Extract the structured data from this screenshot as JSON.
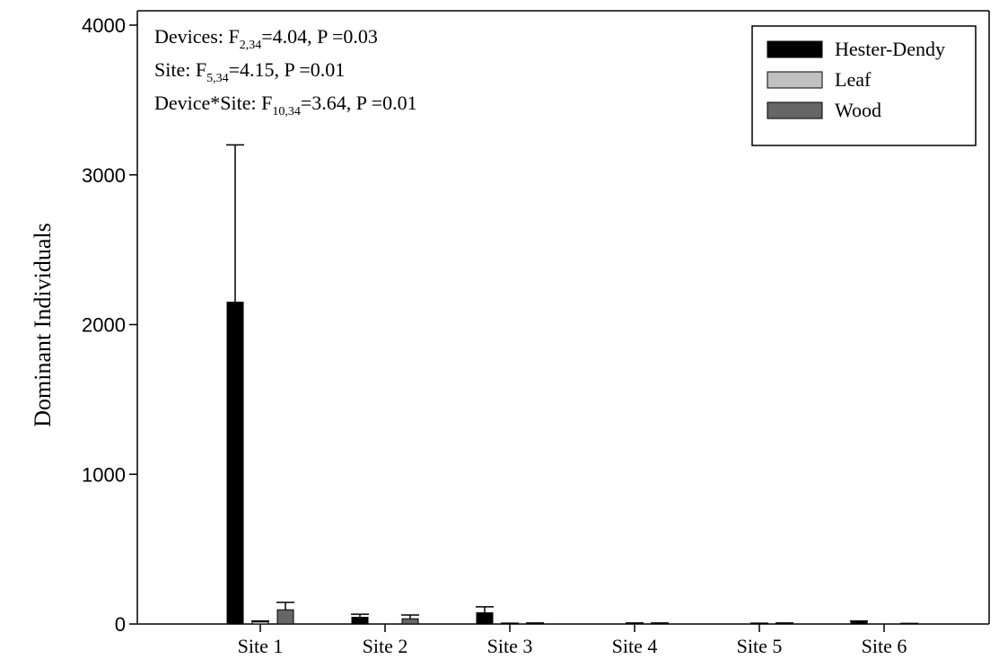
{
  "chart_data": {
    "type": "bar",
    "ylabel": "Dominant Individuals",
    "xlabel": "",
    "ylim": [
      0,
      4000
    ],
    "yticks": [
      0,
      1000,
      2000,
      3000,
      4000
    ],
    "categories": [
      "Site 1",
      "Site 2",
      "Site 3",
      "Site 4",
      "Site 5",
      "Site 6"
    ],
    "series": [
      {
        "name": "Hester-Dendy",
        "color": "#000000",
        "values": [
          2150,
          45,
          75,
          0,
          0,
          15
        ],
        "errors": [
          1050,
          20,
          40,
          0,
          0,
          5
        ]
      },
      {
        "name": "Leaf",
        "color": "#c0c0c0",
        "values": [
          15,
          0,
          3,
          5,
          3,
          0
        ],
        "errors": [
          5,
          0,
          2,
          2,
          2,
          0
        ]
      },
      {
        "name": "Wood",
        "color": "#666666",
        "values": [
          95,
          35,
          5,
          5,
          5,
          3
        ],
        "errors": [
          50,
          25,
          2,
          2,
          2,
          1
        ]
      }
    ],
    "legend_position": "top-right",
    "stats": [
      {
        "lead": "Devices: F",
        "sub": "2,34",
        "tail": "=4.04, P =0.03"
      },
      {
        "lead": "Site: F",
        "sub": "5,34",
        "tail": "=4.15, P =0.01"
      },
      {
        "lead": "Device*Site: F",
        "sub": "10,34",
        "tail": "=3.64, P =0.01"
      }
    ]
  }
}
